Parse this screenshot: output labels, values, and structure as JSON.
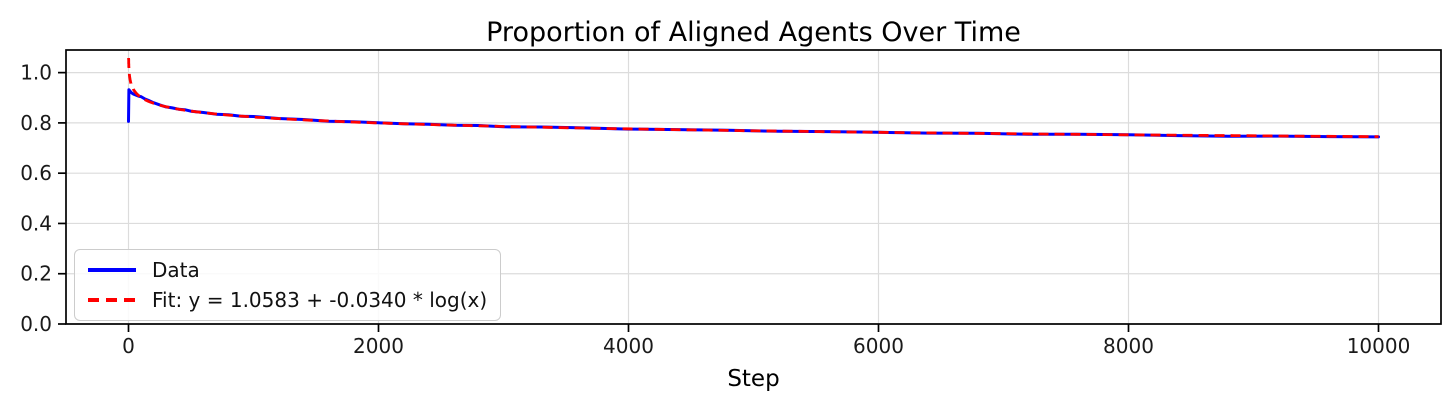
{
  "chart_data": {
    "type": "line",
    "title": "Proportion of Aligned Agents Over Time",
    "xlabel": "Step",
    "ylabel": "",
    "xlim": [
      -500,
      10500
    ],
    "ylim": [
      0,
      1.09
    ],
    "xticks": [
      0,
      2000,
      4000,
      6000,
      8000,
      10000
    ],
    "xtick_labels": [
      "0",
      "2000",
      "4000",
      "6000",
      "8000",
      "10000"
    ],
    "yticks": [
      0.0,
      0.2,
      0.4,
      0.6,
      0.8,
      1.0
    ],
    "ytick_labels": [
      "0.0",
      "0.2",
      "0.4",
      "0.6",
      "0.8",
      "1.0"
    ],
    "grid": true,
    "legend_position": "lower left",
    "colors": {
      "grid": "#dcdcdc",
      "spine": "#000000",
      "tick_text": "#1a1a1a"
    },
    "series": [
      {
        "name": "Data",
        "color": "#0000ff",
        "style": "solid",
        "x": [
          0,
          3,
          8,
          15,
          25,
          40,
          60,
          80,
          100,
          130,
          160,
          200,
          250,
          300,
          350,
          400,
          450,
          500,
          600,
          700,
          800,
          900,
          1000,
          1200,
          1400,
          1600,
          1800,
          2000,
          2200,
          2400,
          2600,
          2800,
          3000,
          3300,
          3600,
          4000,
          4400,
          4800,
          5200,
          5600,
          6000,
          6400,
          6800,
          7200,
          7600,
          8000,
          8400,
          8800,
          9200,
          9600,
          10000
        ],
        "y": [
          0.806,
          0.932,
          0.929,
          0.9245,
          0.9195,
          0.9145,
          0.9105,
          0.9065,
          0.9045,
          0.8955,
          0.8895,
          0.8805,
          0.8715,
          0.8635,
          0.8595,
          0.8545,
          0.8525,
          0.8465,
          0.8415,
          0.8345,
          0.8325,
          0.8265,
          0.8255,
          0.8175,
          0.8135,
          0.8065,
          0.8045,
          0.8005,
          0.7965,
          0.7945,
          0.7905,
          0.7895,
          0.7845,
          0.7835,
          0.7805,
          0.7755,
          0.7735,
          0.7705,
          0.7665,
          0.7655,
          0.7625,
          0.7595,
          0.7585,
          0.7545,
          0.7545,
          0.7525,
          0.7495,
          0.7465,
          0.7475,
          0.7455,
          0.7445
        ]
      },
      {
        "name": "Fit: y = 1.0583 + -0.0340 * log(x)",
        "color": "#ff0000",
        "style": "dashed",
        "fit": {
          "intercept": 1.0583,
          "slope": -0.034,
          "log_base": "natural",
          "x_start": 1,
          "x_end": 10000
        }
      }
    ]
  }
}
